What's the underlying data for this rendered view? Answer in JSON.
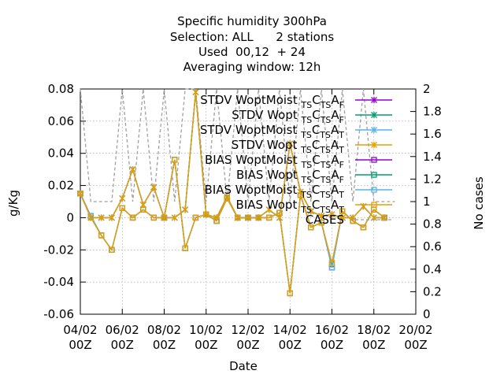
{
  "chart_data": {
    "type": "line",
    "title_lines": [
      "Specific humidity 300hPa",
      "Selection: ALL      2 stations",
      "Used  00,12  + 24",
      "Averaging window: 12h"
    ],
    "xlabel": "Date",
    "ylabel": "g/Kg",
    "y2label": "No cases",
    "x_range_days": [
      4,
      20
    ],
    "ylim": [
      -0.06,
      0.08
    ],
    "y2lim": [
      0,
      2
    ],
    "x_ticks": [
      {
        "day": 4,
        "line1": "04/02",
        "line2": "00Z"
      },
      {
        "day": 6,
        "line1": "06/02",
        "line2": "00Z"
      },
      {
        "day": 8,
        "line1": "08/02",
        "line2": "00Z"
      },
      {
        "day": 10,
        "line1": "10/02",
        "line2": "00Z"
      },
      {
        "day": 12,
        "line1": "12/02",
        "line2": "00Z"
      },
      {
        "day": 14,
        "line1": "14/02",
        "line2": "00Z"
      },
      {
        "day": 16,
        "line1": "16/02",
        "line2": "00Z"
      },
      {
        "day": 18,
        "line1": "18/02",
        "line2": "00Z"
      },
      {
        "day": 20,
        "line1": "20/02",
        "line2": "00Z"
      }
    ],
    "y_ticks": [
      "-0.06",
      "-0.04",
      "-0.02",
      "0",
      "0.02",
      "0.04",
      "0.06",
      "0.08"
    ],
    "y2_ticks": [
      "0",
      "0.2",
      "0.4",
      "0.6",
      "0.8",
      "1",
      "1.2",
      "1.4",
      "1.6",
      "1.8",
      "2"
    ],
    "x_values_days": [
      4.0,
      4.5,
      5.0,
      5.5,
      6.0,
      6.5,
      7.0,
      7.5,
      8.0,
      8.5,
      9.0,
      9.5,
      10.0,
      10.5,
      11.0,
      11.5,
      12.0,
      12.5,
      13.0,
      13.5,
      14.0,
      14.5,
      15.0,
      15.5,
      16.0,
      16.5,
      17.0,
      17.5,
      18.0,
      18.5
    ],
    "series": [
      {
        "name": "STDV WoptMoist",
        "sub": "TS",
        "sub2": "F",
        "marker": "x",
        "color": "#9400d3",
        "values": [
          0.015,
          0.0,
          0.0,
          0.0,
          0.012,
          0.03,
          0.008,
          0.019,
          0.0,
          0.0,
          0.005,
          0.078,
          0.002,
          0.0,
          0.013,
          0.0,
          0.0,
          0.0,
          0.005,
          0.0,
          0.046,
          0.016,
          0.004,
          0.001,
          0.002,
          0.0,
          0.0,
          0.007,
          0.0,
          0.0
        ]
      },
      {
        "name": "STDV Wopt",
        "sub": "TS",
        "sub2": "F",
        "marker": "x",
        "color": "#009e73",
        "values": [
          0.015,
          0.0,
          0.0,
          0.0,
          0.012,
          0.03,
          0.008,
          0.019,
          0.0,
          0.0,
          0.005,
          0.078,
          0.002,
          0.0,
          0.013,
          0.0,
          0.0,
          0.0,
          0.005,
          0.0,
          0.046,
          0.016,
          0.004,
          0.001,
          0.002,
          0.0,
          0.0,
          0.007,
          0.0,
          0.0
        ]
      },
      {
        "name": "STDV WoptMoist",
        "sub": "TS",
        "sub2": "T",
        "marker": "x",
        "color": "#56b4e9",
        "values": [
          0.015,
          0.0,
          0.0,
          0.0,
          0.012,
          0.03,
          0.008,
          0.019,
          0.0,
          0.0,
          0.005,
          0.078,
          0.002,
          0.0,
          0.013,
          0.0,
          0.0,
          0.0,
          0.005,
          0.0,
          0.046,
          0.016,
          0.004,
          0.001,
          0.002,
          0.0,
          0.0,
          0.007,
          0.0,
          0.0
        ]
      },
      {
        "name": "STDV Wopt",
        "sub": "TS",
        "sub2": "T",
        "marker": "x",
        "color": "#e69f00",
        "values": [
          0.015,
          0.0,
          0.0,
          0.0,
          0.012,
          0.03,
          0.008,
          0.019,
          0.0,
          0.0,
          0.005,
          0.078,
          0.002,
          0.0,
          0.013,
          0.0,
          0.0,
          0.0,
          0.005,
          0.0,
          0.046,
          0.016,
          0.004,
          0.001,
          0.002,
          0.0,
          0.0,
          0.007,
          0.0,
          0.0
        ]
      },
      {
        "name": "BIAS WoptMoist",
        "sub": "TS",
        "sub2": "F",
        "marker": "square",
        "color": "#9400d3",
        "values": [
          0.015,
          0.001,
          -0.011,
          -0.02,
          0.006,
          0.0,
          0.005,
          0.0,
          0.0,
          0.036,
          -0.019,
          0.0,
          0.002,
          -0.002,
          0.012,
          0.0,
          0.0,
          0.0,
          0.0,
          0.003,
          -0.047,
          0.014,
          -0.006,
          -0.003,
          -0.031,
          0.004,
          -0.002,
          -0.006,
          0.005,
          0.0
        ]
      },
      {
        "name": "BIAS Wopt",
        "sub": "TS",
        "sub2": "F",
        "marker": "square",
        "color": "#009e73",
        "values": [
          0.015,
          0.001,
          -0.011,
          -0.02,
          0.006,
          0.0,
          0.005,
          0.0,
          0.0,
          0.036,
          -0.019,
          0.0,
          0.002,
          -0.002,
          0.012,
          0.0,
          0.0,
          0.0,
          0.0,
          0.003,
          -0.047,
          0.014,
          -0.006,
          -0.003,
          -0.029,
          0.004,
          -0.002,
          -0.006,
          0.005,
          0.0
        ]
      },
      {
        "name": "BIAS WoptMoist",
        "sub": "TS",
        "sub2": "T",
        "marker": "square",
        "color": "#56b4e9",
        "values": [
          0.015,
          0.001,
          -0.011,
          -0.02,
          0.006,
          0.0,
          0.005,
          0.0,
          0.0,
          0.036,
          -0.019,
          0.0,
          0.002,
          -0.002,
          0.012,
          0.0,
          0.0,
          0.0,
          0.0,
          0.003,
          -0.047,
          0.014,
          -0.006,
          -0.003,
          -0.031,
          0.004,
          -0.002,
          -0.006,
          0.005,
          0.0
        ]
      },
      {
        "name": "BIAS Wopt",
        "sub": "TS",
        "sub2": "T",
        "marker": "square",
        "color": "#e69f00",
        "values": [
          0.015,
          0.0,
          -0.011,
          -0.02,
          0.006,
          0.0,
          0.005,
          0.0,
          0.0,
          0.036,
          -0.019,
          0.0,
          0.002,
          -0.002,
          0.012,
          0.0,
          0.0,
          0.0,
          0.0,
          0.003,
          -0.047,
          0.014,
          -0.006,
          -0.003,
          -0.028,
          0.004,
          -0.002,
          -0.006,
          0.005,
          0.0
        ]
      }
    ],
    "cases": {
      "name": "CASES",
      "color": "#a0a0a0",
      "x_values_days": [
        4.0,
        4.5,
        5.0,
        5.5,
        6.0,
        6.5,
        7.0,
        7.5,
        8.0,
        8.5,
        9.0,
        9.5,
        10.0,
        10.5,
        11.0,
        11.5,
        12.0,
        12.5,
        13.0,
        13.5,
        14.0,
        14.5,
        15.0,
        15.5,
        16.0,
        16.5,
        17.0,
        17.5,
        18.0,
        18.5,
        19.0
      ],
      "values": [
        2,
        1,
        1,
        1,
        2,
        1,
        2,
        1,
        2,
        1,
        2,
        2,
        1,
        2,
        1,
        2,
        1,
        2,
        1,
        2,
        1,
        2,
        1,
        2,
        1,
        2,
        1,
        2,
        1,
        1,
        1
      ]
    }
  }
}
